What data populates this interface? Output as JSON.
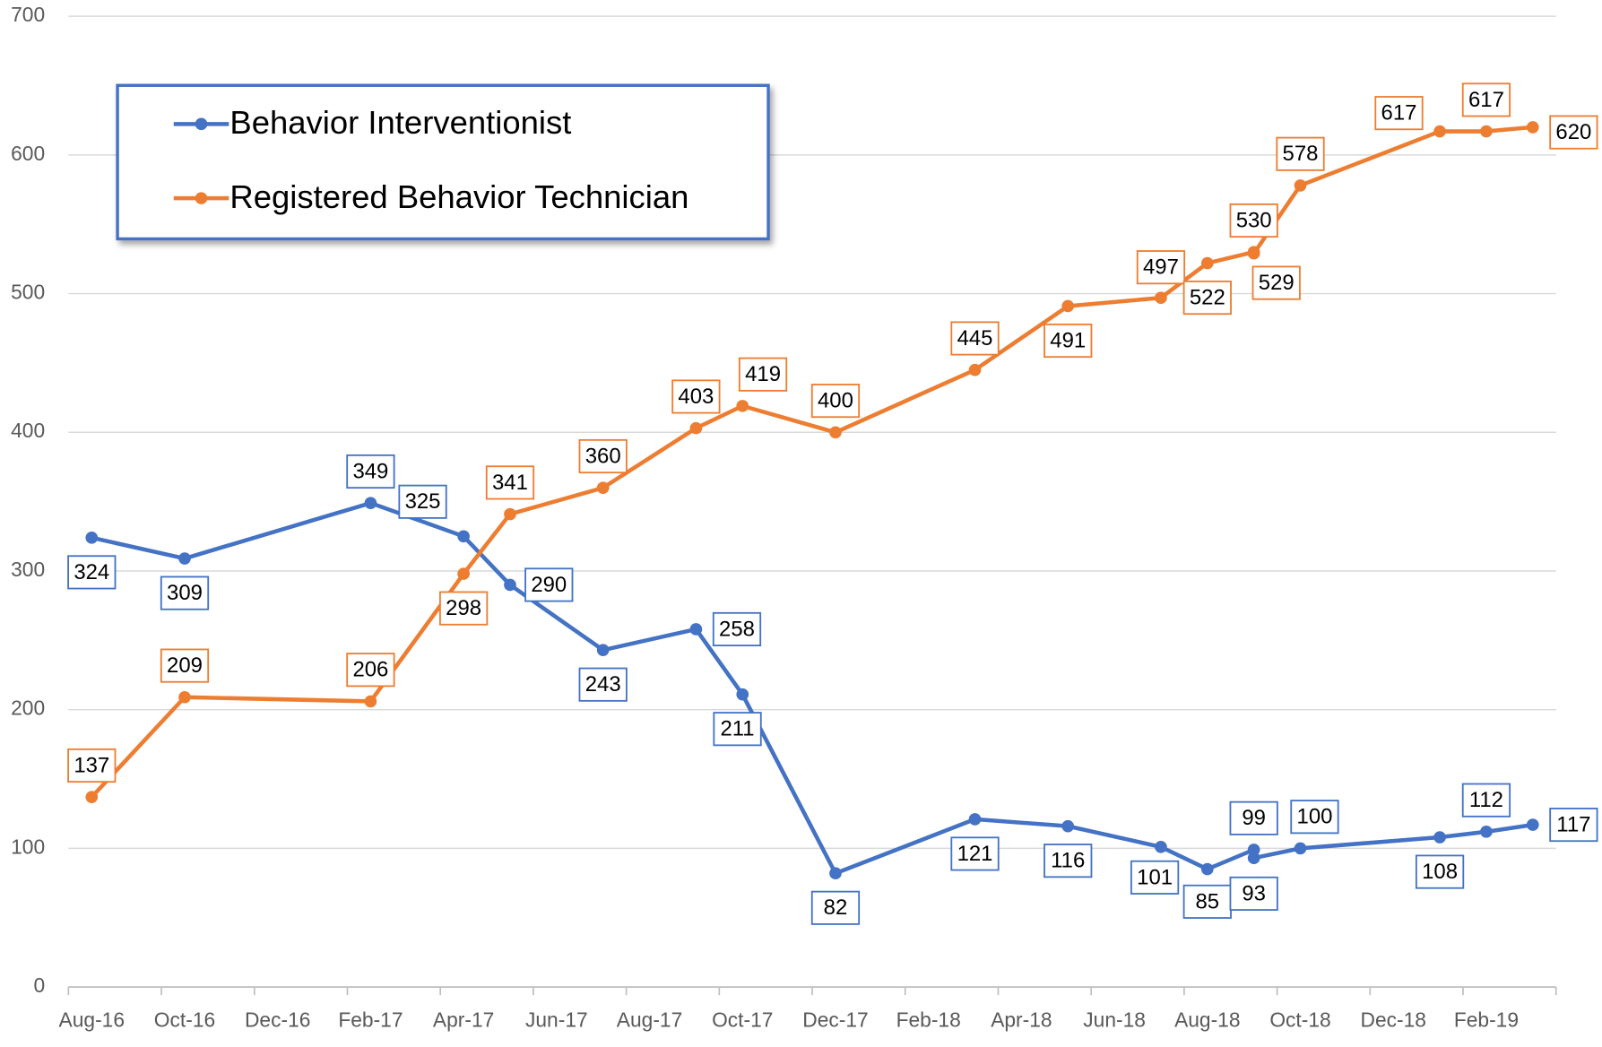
{
  "chart_data": {
    "type": "line",
    "x": [
      "Aug-16",
      "Oct-16",
      "Feb-17",
      "Apr-17",
      "May-17",
      "Jul-17",
      "Sep-17",
      "Oct-17",
      "Dec-17",
      "Mar-18",
      "May-18",
      "Jul-18",
      "Aug-18",
      "Sep-18",
      "Sep-18",
      "Oct-18",
      "Jan-19",
      "Feb-19",
      "Mar-19"
    ],
    "series": [
      {
        "name": "Behavior Interventionist",
        "color": "#4472c4",
        "values": [
          324,
          309,
          349,
          325,
          290,
          243,
          258,
          211,
          82,
          121,
          116,
          101,
          85,
          99,
          93,
          100,
          108,
          112,
          117
        ]
      },
      {
        "name": "Registered Behavior Technician",
        "color": "#ed7d31",
        "values": [
          137,
          209,
          206,
          298,
          341,
          360,
          403,
          419,
          400,
          445,
          491,
          497,
          522,
          530,
          529,
          578,
          617,
          617,
          620
        ]
      }
    ],
    "xlim": [
      "Aug-16",
      "Mar-19"
    ],
    "xticks": [
      "Aug-16",
      "Oct-16",
      "Dec-16",
      "Feb-17",
      "Apr-17",
      "Jun-17",
      "Aug-17",
      "Oct-17",
      "Dec-17",
      "Feb-18",
      "Apr-18",
      "Jun-18",
      "Aug-18",
      "Oct-18",
      "Dec-18",
      "Feb-19"
    ],
    "ylim": [
      0,
      700
    ],
    "yticks": [
      0,
      100,
      200,
      300,
      400,
      500,
      600,
      700
    ],
    "grid": true,
    "legend": "upper left",
    "data_labels": true
  }
}
